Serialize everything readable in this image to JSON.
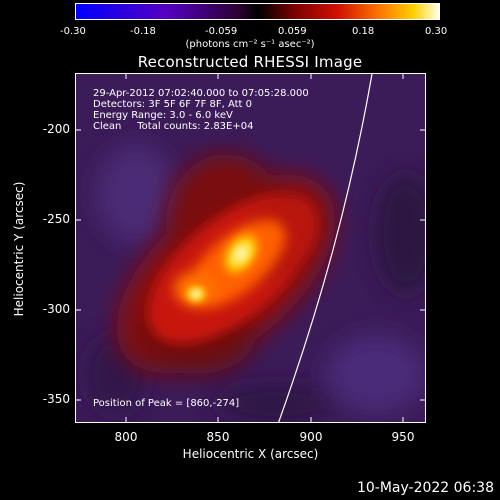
{
  "colorbar": {
    "ticks": [
      "-0.30",
      "-0.18",
      "-0.059",
      "0.059",
      "0.18",
      "0.30"
    ],
    "units_label": "(photons cm⁻² s⁻¹ asec⁻²)"
  },
  "title": "Reconstructed RHESSI Image",
  "info": {
    "time_range": "29-Apr-2012 07:02:40.000 to 07:05:28.000",
    "detectors": "Detectors: 3F 5F 6F 7F 8F, Att 0",
    "energy_range": "Energy Range: 3.0 - 6.0 keV",
    "clean_counts": "Clean     Total counts: 2.83E+04"
  },
  "peak_position": "Position of Peak = [860,-274]",
  "axes": {
    "x_label": "Heliocentric X (arcsec)",
    "y_label": "Heliocentric Y (arcsec)",
    "x_ticks": [
      "800",
      "850",
      "900",
      "950"
    ],
    "y_ticks": [
      "-200",
      "-250",
      "-300",
      "-350"
    ]
  },
  "footer_timestamp": "10-May-2022 06:38"
}
